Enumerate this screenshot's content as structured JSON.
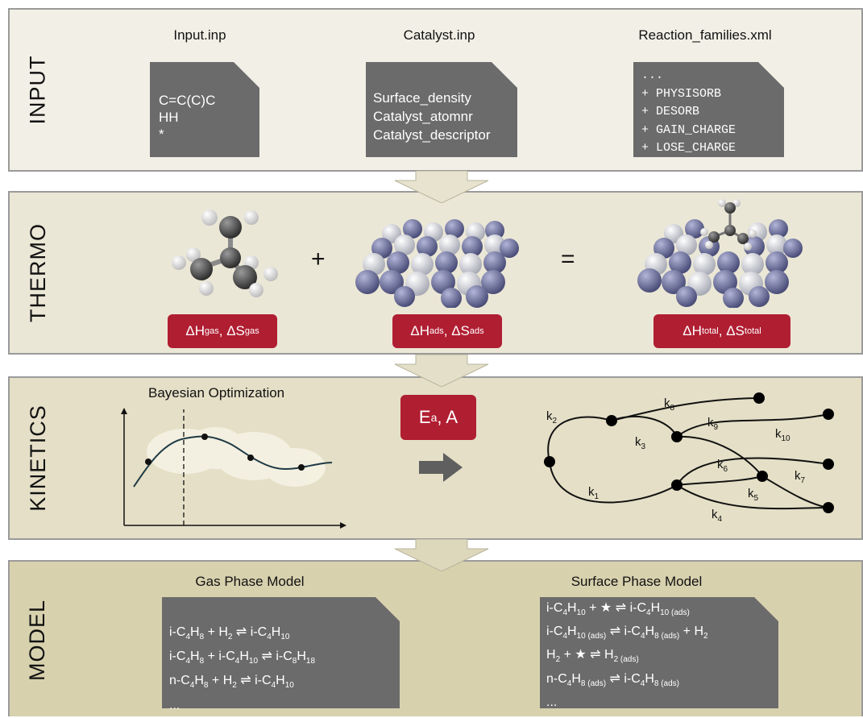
{
  "panels": {
    "input": "INPUT",
    "thermo": "THERMO",
    "kinetics": "KINETICS",
    "model": "MODEL"
  },
  "input": {
    "files": [
      {
        "title": "Input.inp",
        "lines": [
          "C=C(C)C",
          "HH",
          "*"
        ]
      },
      {
        "title": "Catalyst.inp",
        "lines": [
          "Surface_density",
          "Catalyst_atomnr",
          "Catalyst_descriptor"
        ]
      },
      {
        "title": "Reaction_families.xml",
        "lines": [
          "...",
          "+ PHYSISORB",
          "+ DESORB",
          "+ GAIN_CHARGE",
          "+ LOSE_CHARGE"
        ]
      }
    ]
  },
  "thermo": {
    "plus": "+",
    "equals": "=",
    "boxes": [
      {
        "h": "ΔH",
        "h_sub": "gas",
        "sep": ", ",
        "s": "ΔS",
        "s_sub": "gas"
      },
      {
        "h": "ΔH",
        "h_sub": "ads",
        "sep": ", ",
        "s": "ΔS",
        "s_sub": "ads"
      },
      {
        "h": "ΔH",
        "h_sub": "total",
        "sep": ", ",
        "s": "ΔS",
        "s_sub": "total"
      }
    ]
  },
  "kinetics": {
    "bo_title": "Bayesian Optimization",
    "param_main": "E",
    "param_sub": "a",
    "param_rest": ", A",
    "rate_labels": [
      {
        "k": "k",
        "n": "1"
      },
      {
        "k": "k",
        "n": "2"
      },
      {
        "k": "k",
        "n": "3"
      },
      {
        "k": "k",
        "n": "4"
      },
      {
        "k": "k",
        "n": "5"
      },
      {
        "k": "k",
        "n": "6"
      },
      {
        "k": "k",
        "n": "7"
      },
      {
        "k": "k",
        "n": "8"
      },
      {
        "k": "k",
        "n": "9"
      },
      {
        "k": "k",
        "n": "10"
      }
    ]
  },
  "model": {
    "gas_title": "Gas Phase Model",
    "surface_title": "Surface Phase Model",
    "ellipsis": "..."
  },
  "colors": {
    "red": "#b01e32",
    "doc": "#6b6b6b",
    "slate": "#7c7fa6",
    "silver": "#c9cbd3"
  }
}
